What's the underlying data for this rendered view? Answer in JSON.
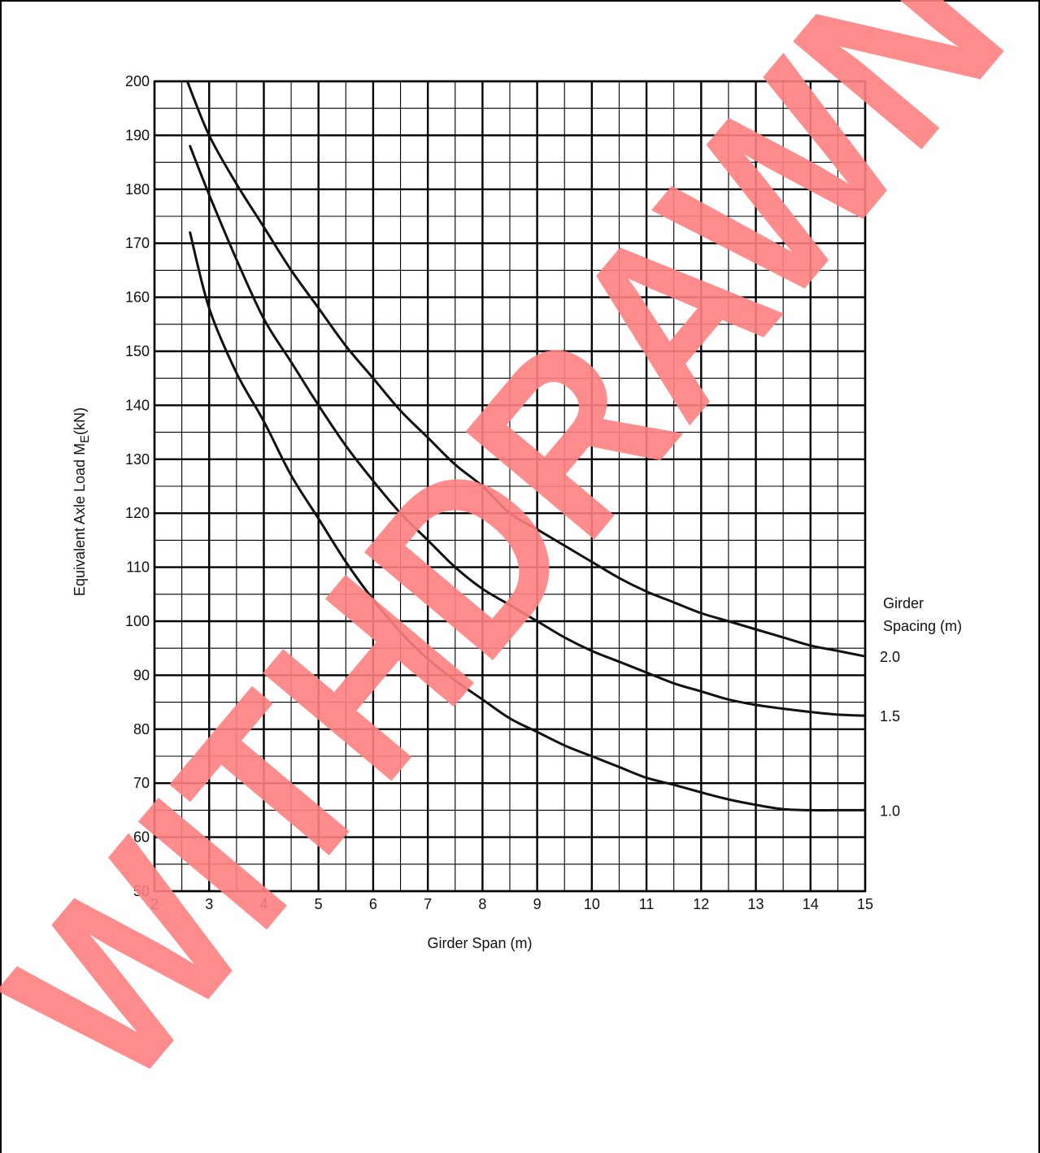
{
  "chart_data": {
    "type": "line",
    "title": "",
    "xlabel": "Girder Span (m)",
    "ylabel": {
      "prefix": "Equivalent Axle Load M",
      "subscript": "E",
      "suffix": "(kN)"
    },
    "xlim": [
      2,
      15
    ],
    "ylim": [
      50,
      200
    ],
    "x_ticks": [
      2,
      3,
      4,
      5,
      6,
      7,
      8,
      9,
      10,
      11,
      12,
      13,
      14,
      15
    ],
    "y_ticks": [
      50,
      60,
      70,
      80,
      90,
      100,
      110,
      120,
      130,
      140,
      150,
      160,
      170,
      180,
      190,
      200
    ],
    "grid": true,
    "legend_title": [
      "Girder",
      "Spacing (m)"
    ],
    "series": [
      {
        "name": "2.0",
        "x": [
          2.6,
          3,
          3.5,
          4,
          4.5,
          5,
          5.5,
          6,
          6.5,
          7,
          7.5,
          8,
          8.5,
          9,
          9.5,
          10,
          10.5,
          11,
          11.5,
          12,
          12.5,
          13,
          13.5,
          14,
          14.5,
          15
        ],
        "y": [
          200,
          190,
          181,
          173,
          165,
          158,
          151,
          145,
          139,
          134,
          129,
          125,
          120,
          117,
          114,
          111,
          108,
          105.5,
          103.5,
          101.5,
          100,
          98.5,
          97,
          95.5,
          94.5,
          93.5
        ]
      },
      {
        "name": "1.5",
        "x": [
          2.65,
          3,
          3.5,
          4,
          4.5,
          5,
          5.5,
          6,
          6.5,
          7,
          7.5,
          8,
          8.5,
          9,
          9.5,
          10,
          10.5,
          11,
          11.5,
          12,
          12.5,
          13,
          13.5,
          14,
          14.5,
          15
        ],
        "y": [
          188,
          179,
          167,
          156,
          148,
          140,
          132.5,
          126,
          120,
          115,
          110,
          106,
          103,
          100,
          97,
          94.5,
          92.5,
          90.5,
          88.5,
          87,
          85.5,
          84.5,
          83.8,
          83.2,
          82.7,
          82.5
        ]
      },
      {
        "name": "1.0",
        "x": [
          2.65,
          3,
          3.5,
          4,
          4.5,
          5,
          5.5,
          6,
          6.5,
          7,
          7.5,
          8,
          8.5,
          9,
          9.5,
          10,
          10.5,
          11,
          11.5,
          12,
          12.5,
          13,
          13.5,
          14,
          14.5,
          15
        ],
        "y": [
          172,
          158,
          146,
          137,
          127,
          119,
          111,
          104,
          98,
          93,
          89,
          85.5,
          82,
          79.5,
          77,
          75,
          73,
          71,
          69.7,
          68.3,
          67,
          66,
          65.2,
          65,
          65,
          65
        ]
      }
    ]
  },
  "watermark": {
    "text": "WITHDRAWN",
    "color": "#ff8080"
  },
  "colors": {
    "line": "#111111",
    "grid": "#000000",
    "background": "#ffffff"
  }
}
